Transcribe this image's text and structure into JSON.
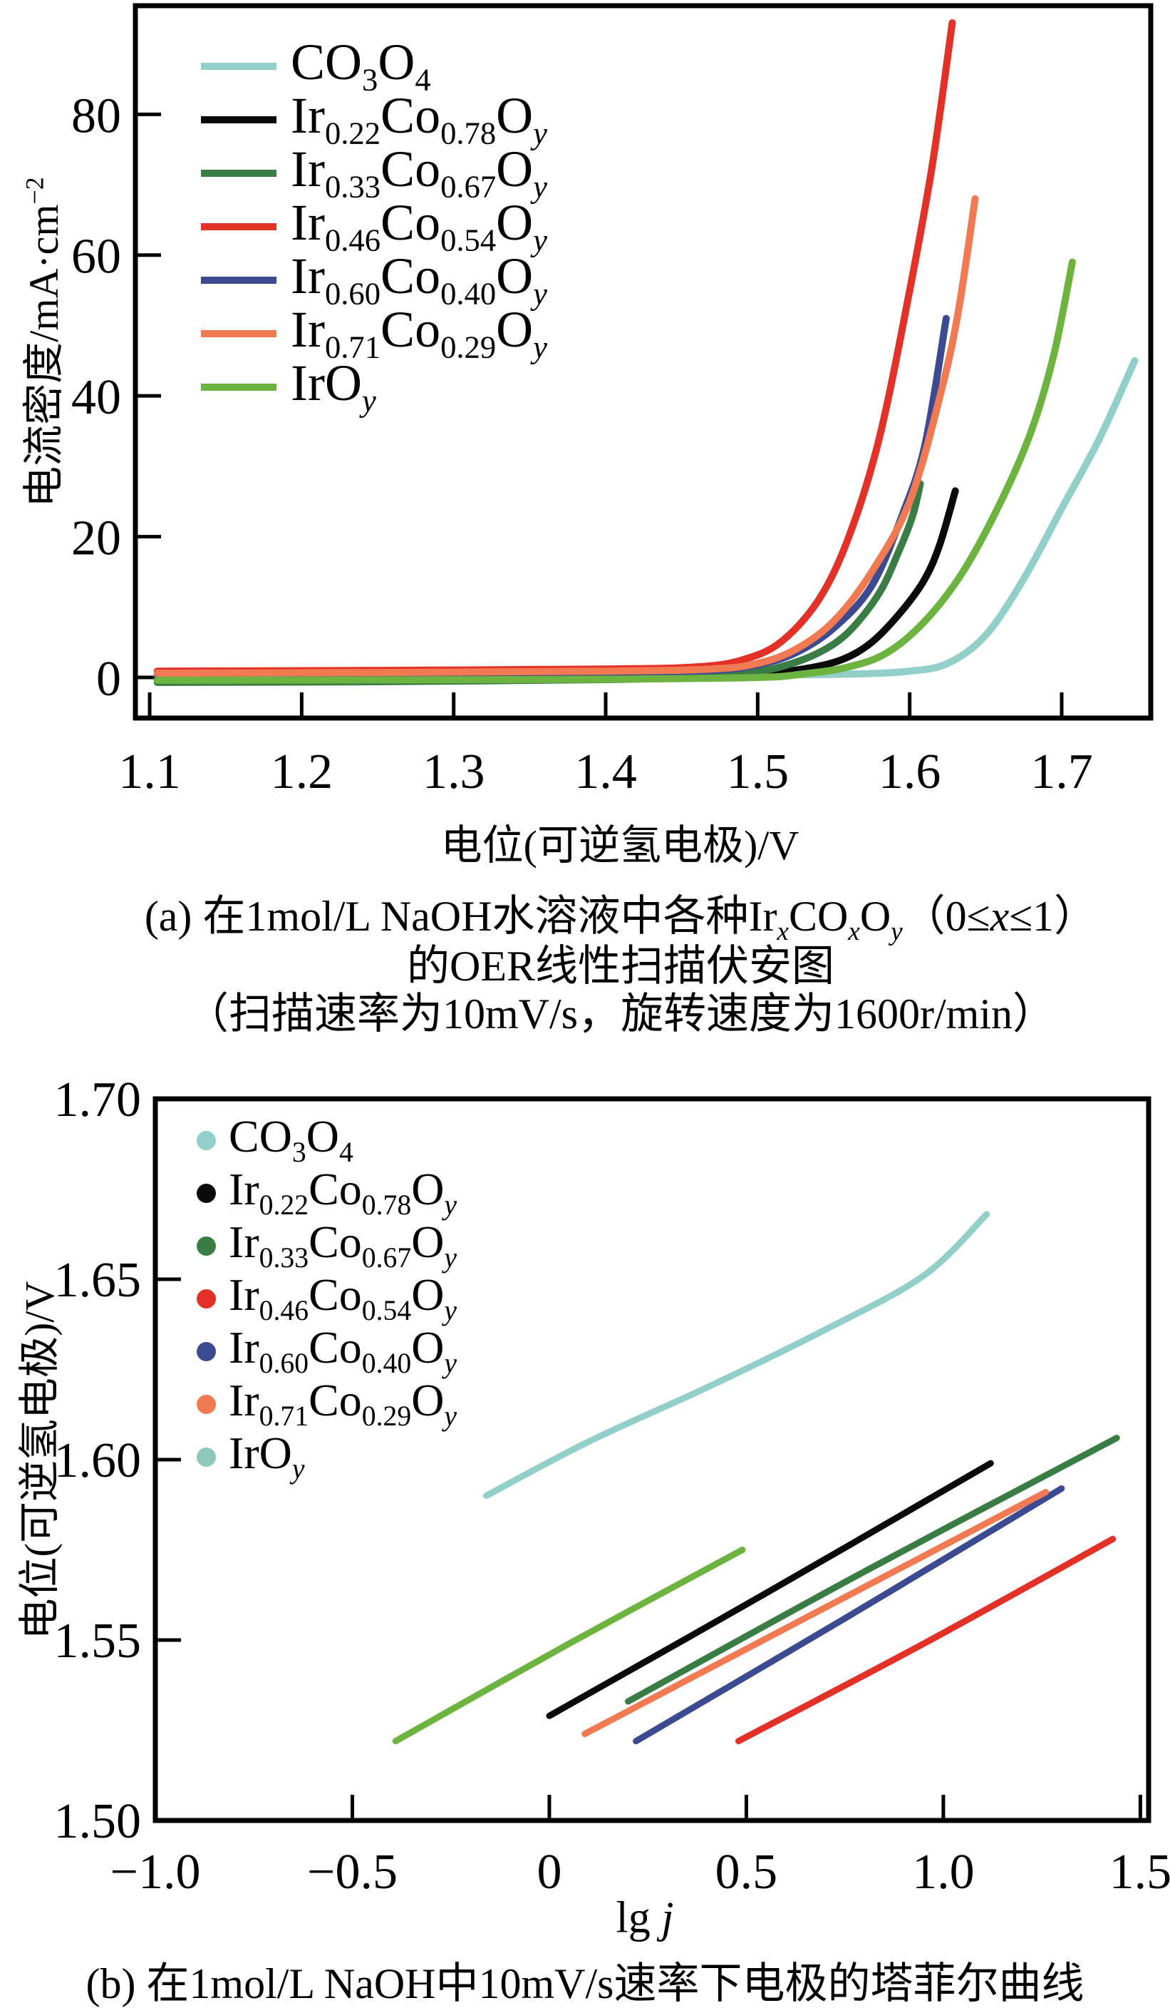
{
  "figure": {
    "caption_a": [
      "(a) 在1mol/L NaOH水溶液中各种Ir_{*x*}CO_{*x*}O_{*y*}（0≤*x*≤1）",
      "的OER线性扫描伏安图",
      "（扫描速率为10mV/s，旋转速度为1600r/min）"
    ],
    "caption_b": "(b) 在1mol/L NaOH中10mV/s速率下电极的塔菲尔曲线"
  },
  "chart_data": [
    {
      "id": "a",
      "type": "line",
      "title": "",
      "xlabel": "电位(可逆氢电极)/V",
      "ylabel": "电流密度/mA·cm^{−2}",
      "xlim": [
        1.0906,
        1.7586
      ],
      "ylim": [
        -5.77,
        95.43
      ],
      "grid": false,
      "legend_position": "top-left",
      "legend_marker": "line",
      "x_ticks": [
        {
          "v": 1.1,
          "label": "1.1"
        },
        {
          "v": 1.2,
          "label": "1.2"
        },
        {
          "v": 1.3,
          "label": "1.3"
        },
        {
          "v": 1.4,
          "label": "1.4"
        },
        {
          "v": 1.5,
          "label": "1.5"
        },
        {
          "v": 1.6,
          "label": "1.6"
        },
        {
          "v": 1.7,
          "label": "1.7"
        }
      ],
      "y_ticks": [
        {
          "v": 0,
          "label": "0"
        },
        {
          "v": 20,
          "label": "20"
        },
        {
          "v": 40,
          "label": "40"
        },
        {
          "v": 60,
          "label": "60"
        },
        {
          "v": 80,
          "label": "80"
        }
      ],
      "series": [
        {
          "name": "CO_{3}O_{4}",
          "color": "#92cfc9",
          "points": [
            [
              1.105,
              0.2
            ],
            [
              1.25,
              0.25
            ],
            [
              1.4,
              0.3
            ],
            [
              1.5,
              0.35
            ],
            [
              1.565,
              0.5
            ],
            [
              1.6,
              0.9
            ],
            [
              1.625,
              2
            ],
            [
              1.65,
              6
            ],
            [
              1.675,
              14
            ],
            [
              1.7,
              24
            ],
            [
              1.725,
              34
            ],
            [
              1.748,
              45
            ]
          ]
        },
        {
          "name": "Ir_{0.22}Co_{0.78}O_{*y*}",
          "color": "#0a0a0a",
          "points": [
            [
              1.105,
              -0.3
            ],
            [
              1.25,
              -0.2
            ],
            [
              1.4,
              0
            ],
            [
              1.47,
              0.2
            ],
            [
              1.5,
              0.5
            ],
            [
              1.53,
              1.2
            ],
            [
              1.555,
              2.5
            ],
            [
              1.575,
              5
            ],
            [
              1.595,
              9.5
            ],
            [
              1.61,
              14
            ],
            [
              1.62,
              19
            ],
            [
              1.63,
              26.5
            ]
          ]
        },
        {
          "name": "Ir_{0.33}Co_{0.67}O_{*y*}",
          "color": "#3a7d44",
          "points": [
            [
              1.105,
              -0.7
            ],
            [
              1.25,
              -0.6
            ],
            [
              1.4,
              -0.3
            ],
            [
              1.46,
              0
            ],
            [
              1.49,
              0.5
            ],
            [
              1.515,
              1.5
            ],
            [
              1.54,
              3.5
            ],
            [
              1.56,
              6.5
            ],
            [
              1.58,
              12
            ],
            [
              1.593,
              18
            ],
            [
              1.602,
              23
            ],
            [
              1.607,
              27.5
            ]
          ]
        },
        {
          "name": "Ir_{0.46}Co_{0.54}O_{*y*}",
          "color": "#e33128",
          "points": [
            [
              1.105,
              0.9
            ],
            [
              1.25,
              1.0
            ],
            [
              1.4,
              1.2
            ],
            [
              1.46,
              1.5
            ],
            [
              1.49,
              2.5
            ],
            [
              1.515,
              5
            ],
            [
              1.54,
              11
            ],
            [
              1.56,
              20
            ],
            [
              1.58,
              34
            ],
            [
              1.6,
              55
            ],
            [
              1.615,
              73
            ],
            [
              1.628,
              93
            ]
          ]
        },
        {
          "name": "Ir_{0.60}Co_{0.40}O_{*y*}",
          "color": "#3c4b91",
          "points": [
            [
              1.105,
              0.4
            ],
            [
              1.25,
              0.5
            ],
            [
              1.4,
              0.7
            ],
            [
              1.47,
              1.0
            ],
            [
              1.5,
              1.8
            ],
            [
              1.525,
              3.5
            ],
            [
              1.55,
              7
            ],
            [
              1.575,
              13
            ],
            [
              1.595,
              23
            ],
            [
              1.61,
              33
            ],
            [
              1.624,
              51
            ]
          ]
        },
        {
          "name": "Ir_{0.71}Co_{0.29}O_{*y*}",
          "color": "#f27a52",
          "points": [
            [
              1.105,
              0.6
            ],
            [
              1.25,
              0.7
            ],
            [
              1.4,
              0.9
            ],
            [
              1.47,
              1.2
            ],
            [
              1.5,
              2
            ],
            [
              1.525,
              4
            ],
            [
              1.55,
              8
            ],
            [
              1.575,
              15
            ],
            [
              1.6,
              25
            ],
            [
              1.62,
              40
            ],
            [
              1.632,
              52
            ],
            [
              1.643,
              68
            ]
          ]
        },
        {
          "name": "IrO_{*y*}",
          "color": "#6db33f",
          "points": [
            [
              1.105,
              -0.4
            ],
            [
              1.25,
              -0.35
            ],
            [
              1.4,
              -0.25
            ],
            [
              1.5,
              0
            ],
            [
              1.53,
              0.5
            ],
            [
              1.56,
              1.5
            ],
            [
              1.585,
              3.5
            ],
            [
              1.61,
              8
            ],
            [
              1.635,
              15
            ],
            [
              1.66,
              25
            ],
            [
              1.68,
              35
            ],
            [
              1.695,
              46
            ],
            [
              1.707,
              59
            ]
          ]
        }
      ]
    },
    {
      "id": "b",
      "type": "line",
      "title": "",
      "xlabel": "lg *j*",
      "ylabel": "电位(可逆氢电极)/V",
      "xlim": [
        -1.0,
        1.521
      ],
      "ylim": [
        1.5,
        1.7
      ],
      "grid": false,
      "legend_position": "top-left",
      "legend_marker": "dot",
      "x_ticks": [
        {
          "v": -1.0,
          "label": "−1.0"
        },
        {
          "v": -0.5,
          "label": "−0.5"
        },
        {
          "v": 0,
          "label": "0"
        },
        {
          "v": 0.5,
          "label": "0.5"
        },
        {
          "v": 1.0,
          "label": "1.0"
        },
        {
          "v": 1.5,
          "label": "1.5"
        }
      ],
      "y_ticks": [
        {
          "v": 1.5,
          "label": "1.50"
        },
        {
          "v": 1.55,
          "label": "1.55"
        },
        {
          "v": 1.6,
          "label": "1.60"
        },
        {
          "v": 1.65,
          "label": "1.65"
        },
        {
          "v": 1.7,
          "label": "1.70"
        }
      ],
      "series": [
        {
          "name": "CO_{3}O_{4}",
          "color": "#92cfc9",
          "points": [
            [
              -0.16,
              1.59
            ],
            [
              0.1,
              1.605
            ],
            [
              0.4,
              1.62
            ],
            [
              0.7,
              1.636
            ],
            [
              0.95,
              1.651
            ],
            [
              1.11,
              1.668
            ]
          ]
        },
        {
          "name": "Ir_{0.22}Co_{0.78}O_{*y*}",
          "color": "#0a0a0a",
          "points": [
            [
              0.0,
              1.529
            ],
            [
              0.55,
              1.563
            ],
            [
              1.12,
              1.599
            ]
          ]
        },
        {
          "name": "Ir_{0.33}Co_{0.67}O_{*y*}",
          "color": "#3a7d44",
          "points": [
            [
              0.2,
              1.533
            ],
            [
              0.8,
              1.569
            ],
            [
              1.44,
              1.606
            ]
          ]
        },
        {
          "name": "Ir_{0.46}Co_{0.54}O_{*y*}",
          "color": "#e33128",
          "points": [
            [
              0.48,
              1.522
            ],
            [
              0.95,
              1.549
            ],
            [
              1.43,
              1.578
            ]
          ]
        },
        {
          "name": "Ir_{0.60}Co_{0.40}O_{*y*}",
          "color": "#3c4b91",
          "points": [
            [
              0.22,
              1.522
            ],
            [
              0.75,
              1.556
            ],
            [
              1.3,
              1.592
            ]
          ]
        },
        {
          "name": "Ir_{0.71}Co_{0.29}O_{*y*}",
          "color": "#f27a52",
          "points": [
            [
              0.09,
              1.524
            ],
            [
              0.7,
              1.559
            ],
            [
              1.26,
              1.591
            ]
          ]
        },
        {
          "name": "IrO_{*y*}",
          "color": "#6db33f",
          "marker_color": "#8ec8b9",
          "points": [
            [
              -0.39,
              1.522
            ],
            [
              0.05,
              1.549
            ],
            [
              0.49,
              1.575
            ]
          ]
        }
      ]
    }
  ]
}
